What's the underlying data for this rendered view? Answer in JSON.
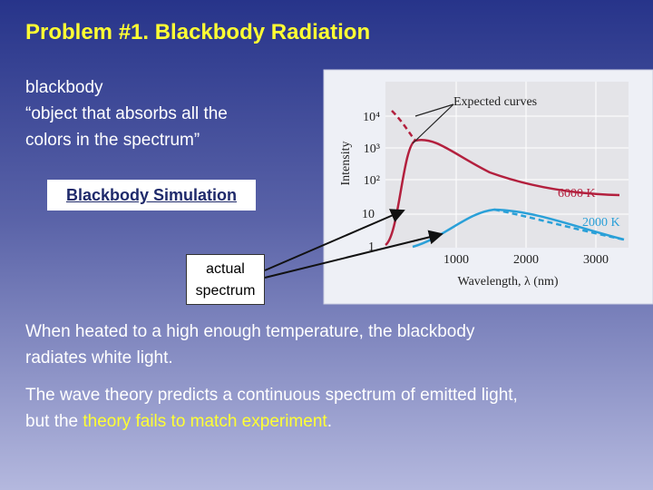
{
  "title": "Problem #1. Blackbody Radiation",
  "definition": {
    "term": "blackbody",
    "lines": [
      "“object that absorbs all the",
      "colors in the spectrum”"
    ]
  },
  "link": "Blackbody Simulation",
  "callout": [
    "actual",
    "spectrum"
  ],
  "figure": {
    "y_label": "Intensity",
    "x_label": "Wavelength, λ (nm)",
    "y_tick_labels": [
      "10⁴",
      "10³",
      "10²",
      "10",
      "1"
    ],
    "x_tick_labels": [
      "1000",
      "2000",
      "3000"
    ],
    "annotation": "Expected curves",
    "curve_labels": [
      "6000 K",
      "2000 K"
    ]
  },
  "paragraphs": {
    "first": [
      "When heated to a high enough temperature, the blackbody",
      "radiates white light."
    ],
    "second": {
      "line": "The wave theory predicts a continuous spectrum of emitted light,",
      "before": "but the ",
      "highlight": "theory fails to match experiment",
      "after": "."
    }
  }
}
